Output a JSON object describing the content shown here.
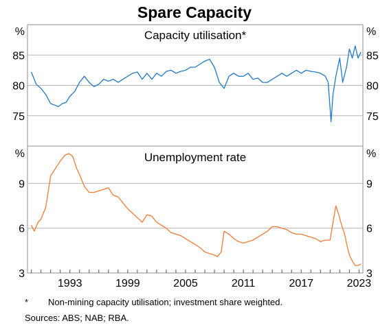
{
  "chart_data": {
    "type": "line",
    "title": "Spare Capacity",
    "x_ticks": [
      "1993",
      "1999",
      "2005",
      "2011",
      "2017",
      "2023"
    ],
    "x_range": [
      1988.6,
      2023.4
    ],
    "panels": [
      {
        "title": "Capacity utilisation*",
        "unit": "%",
        "ylim": [
          70,
          90
        ],
        "y_ticks": [
          75,
          80,
          85
        ],
        "color": "#1f78c8",
        "series": [
          {
            "x": [
              1989.0,
              1989.5,
              1990.0,
              1990.5,
              1991.0,
              1991.5,
              1991.8,
              1992.2,
              1992.6,
              1993.0,
              1993.5,
              1994.0,
              1994.5,
              1995.0,
              1995.5,
              1996.0,
              1996.5,
              1997.0,
              1997.5,
              1998.0,
              1998.5,
              1999.0,
              1999.5,
              2000.0,
              2000.5,
              2001.0,
              2001.5,
              2002.0,
              2002.5,
              2003.0,
              2003.5,
              2004.0,
              2004.5,
              2005.0,
              2005.5,
              2006.0,
              2006.5,
              2007.0,
              2007.5,
              2008.0,
              2008.5,
              2009.0,
              2009.5,
              2010.0,
              2010.5,
              2011.0,
              2011.5,
              2012.0,
              2012.5,
              2013.0,
              2013.5,
              2014.0,
              2014.5,
              2015.0,
              2015.5,
              2016.0,
              2016.5,
              2017.0,
              2017.5,
              2018.0,
              2018.5,
              2019.0,
              2019.5,
              2019.8,
              2020.1,
              2020.3,
              2020.6,
              2021.0,
              2021.3,
              2021.7,
              2022.0,
              2022.3,
              2022.6,
              2022.9,
              2023.2
            ],
            "y": [
              82.2,
              80.2,
              79.5,
              78.5,
              77.0,
              76.7,
              76.5,
              77.0,
              77.2,
              78.2,
              79.0,
              80.5,
              81.5,
              80.5,
              79.8,
              80.2,
              81.0,
              80.7,
              81.0,
              80.5,
              81.0,
              81.5,
              82.0,
              82.2,
              81.0,
              82.0,
              81.0,
              82.0,
              81.5,
              82.3,
              82.5,
              82.0,
              82.3,
              82.5,
              83.0,
              83.0,
              83.5,
              84.0,
              84.3,
              83.0,
              80.5,
              79.5,
              81.5,
              82.0,
              81.5,
              81.5,
              82.0,
              81.0,
              81.2,
              80.5,
              80.5,
              81.0,
              81.5,
              82.0,
              81.5,
              82.0,
              82.5,
              82.0,
              82.5,
              82.3,
              82.2,
              82.0,
              81.5,
              80.5,
              74.0,
              78.5,
              81.5,
              84.5,
              80.5,
              83.0,
              86.0,
              84.5,
              86.5,
              84.5,
              85.5
            ]
          }
        ]
      },
      {
        "title": "Unemployment rate",
        "unit": "%",
        "ylim": [
          3,
          11.5
        ],
        "y_ticks": [
          3,
          6,
          9
        ],
        "color": "#f47b35",
        "series": [
          {
            "x": [
              1989.0,
              1989.3,
              1989.7,
              1990.0,
              1990.5,
              1991.0,
              1991.5,
              1992.0,
              1992.5,
              1992.9,
              1993.3,
              1993.7,
              1994.0,
              1994.5,
              1995.0,
              1995.5,
              1996.0,
              1996.5,
              1997.0,
              1997.5,
              1998.0,
              1998.5,
              1999.0,
              1999.5,
              2000.0,
              2000.5,
              2001.0,
              2001.5,
              2002.0,
              2002.5,
              2003.0,
              2003.5,
              2004.0,
              2004.5,
              2005.0,
              2005.5,
              2006.0,
              2006.5,
              2007.0,
              2007.5,
              2008.0,
              2008.3,
              2008.7,
              2009.0,
              2009.5,
              2010.0,
              2010.5,
              2011.0,
              2011.5,
              2012.0,
              2012.5,
              2013.0,
              2013.5,
              2014.0,
              2014.5,
              2015.0,
              2015.5,
              2016.0,
              2016.5,
              2017.0,
              2017.5,
              2018.0,
              2018.5,
              2019.0,
              2019.5,
              2020.0,
              2020.3,
              2020.6,
              2020.9,
              2021.2,
              2021.5,
              2021.8,
              2022.0,
              2022.3,
              2022.6,
              2022.9,
              2023.2
            ],
            "y": [
              6.2,
              5.8,
              6.4,
              6.6,
              7.4,
              9.5,
              10.0,
              10.5,
              10.9,
              11.0,
              10.8,
              10.0,
              9.6,
              8.8,
              8.4,
              8.4,
              8.5,
              8.6,
              8.7,
              8.2,
              8.1,
              7.7,
              7.3,
              7.0,
              6.7,
              6.4,
              6.9,
              6.8,
              6.4,
              6.2,
              6.0,
              5.7,
              5.6,
              5.5,
              5.3,
              5.1,
              4.9,
              4.7,
              4.4,
              4.3,
              4.2,
              4.1,
              4.4,
              5.8,
              5.6,
              5.3,
              5.1,
              5.0,
              5.1,
              5.2,
              5.4,
              5.6,
              5.8,
              6.1,
              6.1,
              6.0,
              5.9,
              5.7,
              5.6,
              5.6,
              5.5,
              5.4,
              5.3,
              5.1,
              5.2,
              5.2,
              6.4,
              7.5,
              6.9,
              6.2,
              5.6,
              4.7,
              4.2,
              3.8,
              3.5,
              3.5,
              3.6
            ]
          }
        ]
      }
    ]
  },
  "footnotes": {
    "marker": "*",
    "text": "Non-mining capacity utilisation; investment share weighted.",
    "sources": "Sources: ABS; NAB; RBA."
  }
}
